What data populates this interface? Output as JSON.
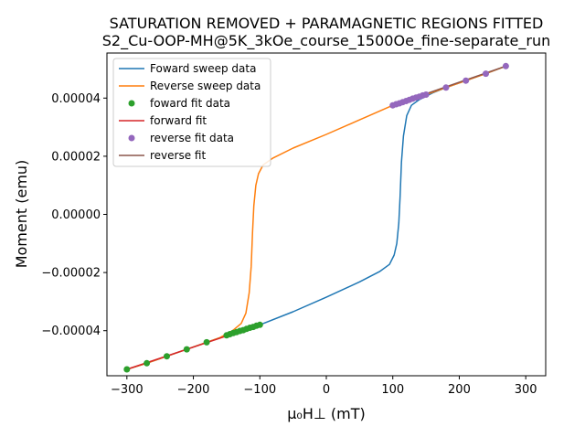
{
  "chart_data": {
    "type": "line",
    "title": [
      "SATURATION REMOVED + PARAMAGNETIC REGIONS FITTED",
      "S2_Cu-OOP-MH@5K_3kOe_course_1500Oe_fine-separate_run"
    ],
    "xlabel": "μ₀H⊥ (mT)",
    "ylabel": "Moment (emu)",
    "xlim": [
      -330,
      330
    ],
    "ylim": [
      -5.55e-05,
      5.55e-05
    ],
    "x_ticks": [
      -300,
      -200,
      -100,
      0,
      100,
      200,
      300
    ],
    "x_tick_labels": [
      "−300",
      "−200",
      "−100",
      "0",
      "100",
      "200",
      "300"
    ],
    "y_ticks": [
      -4e-05,
      -2e-05,
      0,
      2e-05,
      4e-05
    ],
    "y_tick_labels": [
      "−0.00004",
      "−0.00002",
      "0.00000",
      "0.00002",
      "0.00004"
    ],
    "grid": false,
    "legend_position": "top-left",
    "series": [
      {
        "name": "Foward sweep data",
        "kind": "line",
        "color": "#1f77b4",
        "points": [
          [
            -300,
            -5.33e-05
          ],
          [
            -270,
            -5.12e-05
          ],
          [
            -240,
            -4.88e-05
          ],
          [
            -210,
            -4.64e-05
          ],
          [
            -180,
            -4.4e-05
          ],
          [
            -150,
            -4.16e-05
          ],
          [
            -120,
            -3.94e-05
          ],
          [
            -100,
            -3.8e-05
          ],
          [
            -50,
            -3.35e-05
          ],
          [
            0,
            -2.85e-05
          ],
          [
            50,
            -2.32e-05
          ],
          [
            80,
            -1.97e-05
          ],
          [
            95,
            -1.72e-05
          ],
          [
            102,
            -1.4e-05
          ],
          [
            106,
            -1e-05
          ],
          [
            109,
            -3e-06
          ],
          [
            111,
            6e-06
          ],
          [
            113,
            1.8e-05
          ],
          [
            116,
            2.7e-05
          ],
          [
            121,
            3.4e-05
          ],
          [
            128,
            3.75e-05
          ],
          [
            140,
            3.95e-05
          ],
          [
            160,
            4.18e-05
          ],
          [
            180,
            4.36e-05
          ],
          [
            210,
            4.6e-05
          ],
          [
            240,
            4.84e-05
          ],
          [
            270,
            5.1e-05
          ]
        ]
      },
      {
        "name": "Reverse sweep data",
        "kind": "line",
        "color": "#ff7f0e",
        "points": [
          [
            270,
            5.1e-05
          ],
          [
            240,
            4.84e-05
          ],
          [
            210,
            4.6e-05
          ],
          [
            180,
            4.36e-05
          ],
          [
            150,
            4.12e-05
          ],
          [
            120,
            3.9e-05
          ],
          [
            100,
            3.75e-05
          ],
          [
            50,
            3.25e-05
          ],
          [
            0,
            2.75e-05
          ],
          [
            -50,
            2.28e-05
          ],
          [
            -80,
            1.94e-05
          ],
          [
            -95,
            1.7e-05
          ],
          [
            -102,
            1.4e-05
          ],
          [
            -106,
            1e-05
          ],
          [
            -109,
            3e-06
          ],
          [
            -111,
            -6e-06
          ],
          [
            -113,
            -1.8e-05
          ],
          [
            -116,
            -2.7e-05
          ],
          [
            -121,
            -3.4e-05
          ],
          [
            -128,
            -3.75e-05
          ],
          [
            -140,
            -3.98e-05
          ],
          [
            -160,
            -4.24e-05
          ],
          [
            -180,
            -4.4e-05
          ],
          [
            -210,
            -4.64e-05
          ],
          [
            -240,
            -4.88e-05
          ],
          [
            -270,
            -5.12e-05
          ],
          [
            -300,
            -5.33e-05
          ]
        ]
      },
      {
        "name": "foward fit data",
        "kind": "scatter",
        "color": "#2ca02c",
        "points": [
          [
            -300,
            -5.33e-05
          ],
          [
            -270,
            -5.12e-05
          ],
          [
            -240,
            -4.88e-05
          ],
          [
            -210,
            -4.64e-05
          ],
          [
            -180,
            -4.4e-05
          ],
          [
            -150,
            -4.16e-05
          ],
          [
            -145,
            -4.12e-05
          ],
          [
            -140,
            -4.08e-05
          ],
          [
            -135,
            -4.05e-05
          ],
          [
            -130,
            -4.01e-05
          ],
          [
            -125,
            -3.98e-05
          ],
          [
            -120,
            -3.94e-05
          ],
          [
            -115,
            -3.9e-05
          ],
          [
            -110,
            -3.87e-05
          ],
          [
            -105,
            -3.83e-05
          ],
          [
            -100,
            -3.8e-05
          ]
        ]
      },
      {
        "name": "forward fit",
        "kind": "line",
        "color": "#d62728",
        "points": [
          [
            -300,
            -5.33e-05
          ],
          [
            -100,
            -3.8e-05
          ]
        ]
      },
      {
        "name": "reverse fit data",
        "kind": "scatter",
        "color": "#9467bd",
        "points": [
          [
            100,
            3.75e-05
          ],
          [
            105,
            3.79e-05
          ],
          [
            110,
            3.82e-05
          ],
          [
            115,
            3.86e-05
          ],
          [
            120,
            3.9e-05
          ],
          [
            125,
            3.94e-05
          ],
          [
            130,
            3.98e-05
          ],
          [
            135,
            4.02e-05
          ],
          [
            140,
            4.05e-05
          ],
          [
            145,
            4.09e-05
          ],
          [
            150,
            4.12e-05
          ],
          [
            180,
            4.36e-05
          ],
          [
            210,
            4.6e-05
          ],
          [
            240,
            4.84e-05
          ],
          [
            270,
            5.1e-05
          ]
        ]
      },
      {
        "name": "reverse fit",
        "kind": "line",
        "color": "#8c564b",
        "points": [
          [
            100,
            3.75e-05
          ],
          [
            270,
            5.1e-05
          ]
        ]
      }
    ]
  }
}
